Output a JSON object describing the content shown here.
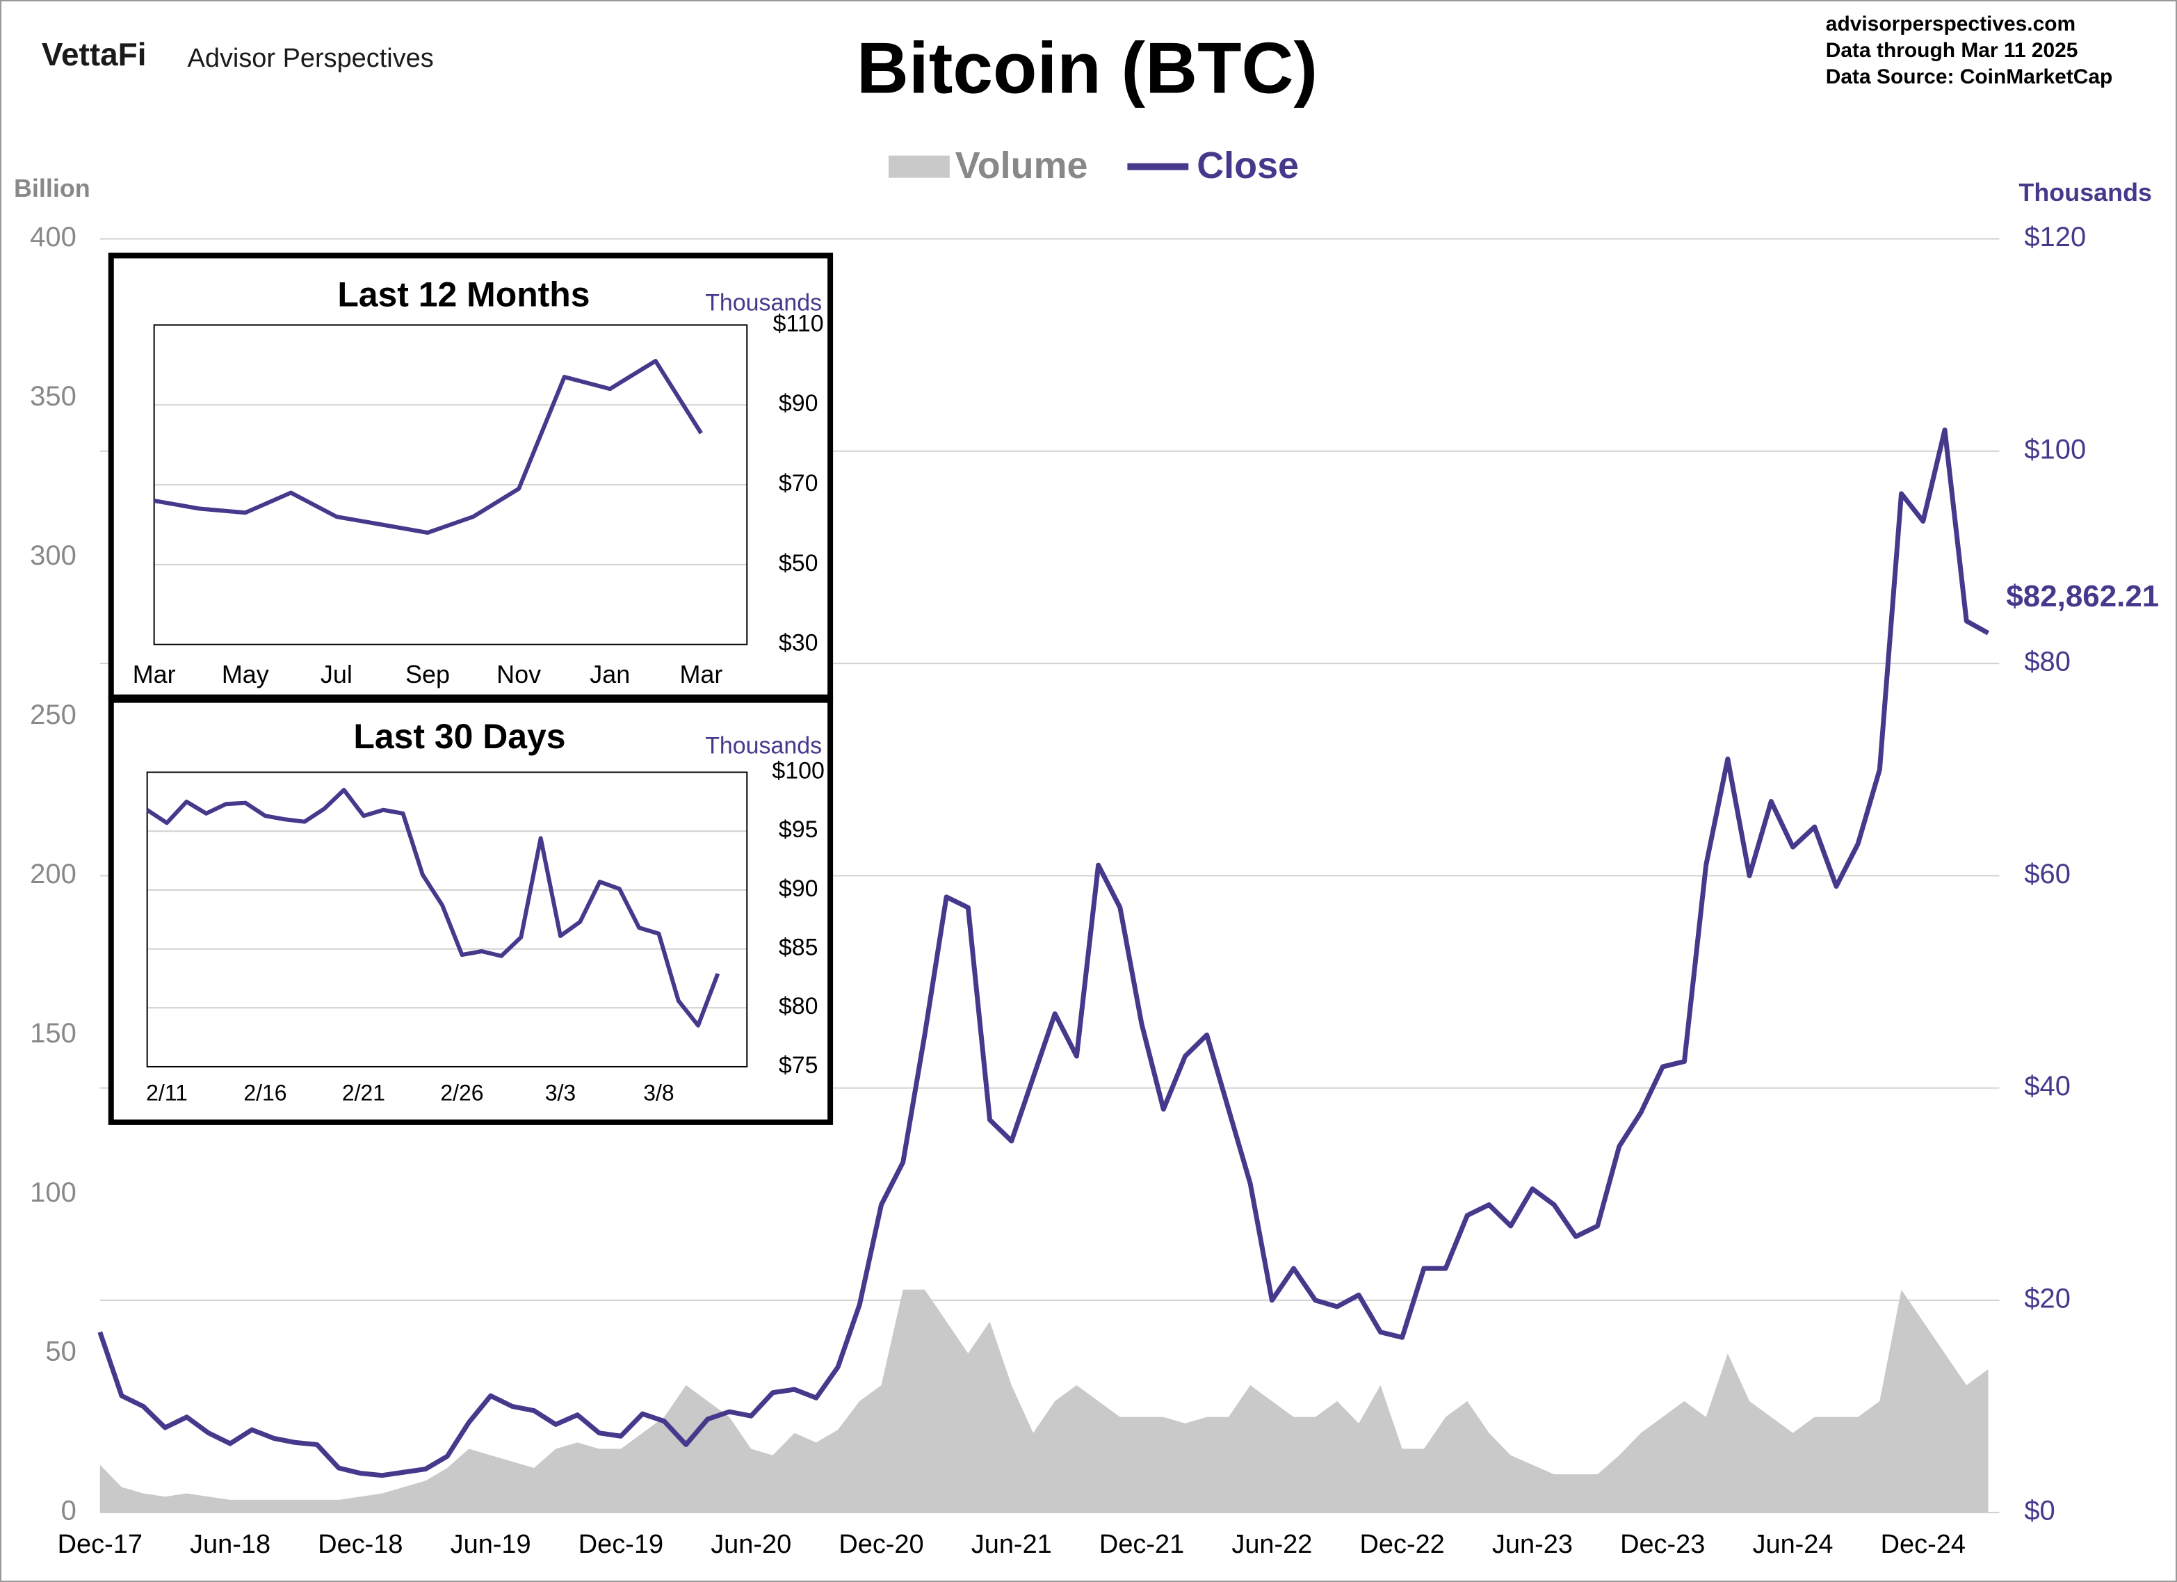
{
  "header": {
    "logo": "VettaFi",
    "brand": "Advisor Perspectives",
    "site": "advisorperspectives.com",
    "data_through": "Data through  Mar 11 2025",
    "data_source": "Data Source:  CoinMarketCap"
  },
  "chart_data": [
    {
      "type": "combo",
      "title": "Bitcoin (BTC)",
      "y_label": "Billion",
      "y2_label": "Thousands",
      "categories": [
        "Dec-17",
        null,
        null,
        null,
        null,
        null,
        "Jun-18",
        null,
        null,
        null,
        null,
        null,
        "Dec-18",
        null,
        null,
        null,
        null,
        null,
        "Jun-19",
        null,
        null,
        null,
        null,
        null,
        "Dec-19",
        null,
        null,
        null,
        null,
        null,
        "Jun-20",
        null,
        null,
        null,
        null,
        null,
        "Dec-20",
        null,
        null,
        null,
        null,
        null,
        "Jun-21",
        null,
        null,
        null,
        null,
        null,
        "Dec-21",
        null,
        null,
        null,
        null,
        null,
        "Jun-22",
        null,
        null,
        null,
        null,
        null,
        "Dec-22",
        null,
        null,
        null,
        null,
        null,
        "Jun-23",
        null,
        null,
        null,
        null,
        null,
        "Dec-23",
        null,
        null,
        null,
        null,
        null,
        "Jun-24",
        null,
        null,
        null,
        null,
        null,
        "Dec-24",
        null,
        null,
        null
      ],
      "series": [
        {
          "name": "Volume",
          "mark": "area",
          "axis": "y",
          "color": "#c9c9c9",
          "values": [
            15,
            8,
            6,
            5,
            6,
            5,
            4,
            4,
            4,
            4,
            4,
            4,
            5,
            6,
            8,
            10,
            14,
            20,
            18,
            16,
            14,
            20,
            22,
            20,
            20,
            25,
            30,
            40,
            35,
            30,
            20,
            18,
            25,
            22,
            26,
            35,
            40,
            70,
            70,
            60,
            50,
            60,
            40,
            25,
            35,
            40,
            35,
            30,
            30,
            30,
            28,
            30,
            30,
            40,
            35,
            30,
            30,
            35,
            28,
            40,
            20,
            20,
            30,
            35,
            25,
            18,
            15,
            12,
            12,
            12,
            18,
            25,
            30,
            35,
            30,
            50,
            35,
            30,
            25,
            30,
            30,
            30,
            35,
            70,
            60,
            50,
            40,
            45
          ]
        },
        {
          "name": "Close",
          "mark": "line",
          "axis": "y2",
          "color": "#46398c",
          "values": [
            17,
            11,
            10,
            8,
            9,
            7.5,
            6.5,
            7.8,
            7,
            6.6,
            6.4,
            4.2,
            3.7,
            3.5,
            3.8,
            4.1,
            5.3,
            8.5,
            11,
            10,
            9.6,
            8.3,
            9.2,
            7.5,
            7.2,
            9.3,
            8.6,
            6.4,
            8.8,
            9.5,
            9.1,
            11.3,
            11.6,
            10.8,
            13.7,
            19.6,
            29,
            33,
            45,
            58,
            57,
            37,
            35,
            41,
            47,
            43,
            61,
            57,
            46,
            38,
            43,
            45,
            38,
            31,
            20,
            23,
            20,
            19.4,
            20.5,
            17,
            16.5,
            23,
            23,
            28,
            29,
            27,
            30.5,
            29,
            26,
            27,
            34.5,
            37.7,
            42,
            42.5,
            61,
            71,
            60,
            67,
            62.7,
            64.6,
            59,
            63,
            70,
            96,
            93.4,
            102,
            84,
            82.86221
          ],
          "value_labels": [
            null,
            null,
            null,
            null,
            null,
            null,
            null,
            null,
            null,
            null,
            null,
            null,
            null,
            null,
            null,
            null,
            null,
            null,
            null,
            null,
            null,
            null,
            null,
            null,
            null,
            null,
            null,
            null,
            null,
            null,
            null,
            null,
            null,
            null,
            null,
            null,
            null,
            null,
            null,
            null,
            null,
            null,
            null,
            null,
            null,
            null,
            null,
            null,
            null,
            null,
            null,
            null,
            null,
            null,
            null,
            null,
            null,
            null,
            null,
            null,
            null,
            null,
            null,
            null,
            null,
            null,
            null,
            null,
            null,
            null,
            null,
            null,
            null,
            null,
            null,
            null,
            null,
            null,
            null,
            null,
            null,
            null,
            null,
            null,
            null,
            null,
            null,
            "$82,862.21"
          ]
        }
      ],
      "ylim": [
        0,
        400
      ],
      "yticks": [
        0,
        50,
        100,
        150,
        200,
        250,
        300,
        350,
        400
      ],
      "y2lim": [
        0,
        120
      ],
      "y2ticks": [
        {
          "value": 0,
          "label": "$0"
        },
        {
          "value": 20,
          "label": "$20"
        },
        {
          "value": 40,
          "label": "$40"
        },
        {
          "value": 60,
          "label": "$60"
        },
        {
          "value": 80,
          "label": "$80"
        },
        {
          "value": 100,
          "label": "$100"
        },
        {
          "value": 120,
          "label": "$120"
        }
      ],
      "grid": "y2",
      "legend": "top"
    },
    {
      "type": "line",
      "title": "Last 12 Months",
      "y2_label": "Thousands",
      "color": "#46398c",
      "categories": [
        "Mar",
        null,
        "May",
        null,
        "Jul",
        null,
        "Sep",
        null,
        "Nov",
        null,
        "Jan",
        null,
        "Mar"
      ],
      "values": [
        66,
        64,
        63,
        68,
        62,
        60,
        58,
        62,
        69,
        97,
        94,
        101,
        82.9
      ],
      "ylim": [
        30,
        110
      ],
      "yticks": [
        {
          "value": 30,
          "label": "$30"
        },
        {
          "value": 50,
          "label": "$50"
        },
        {
          "value": 70,
          "label": "$70"
        },
        {
          "value": 90,
          "label": "$90"
        },
        {
          "value": 110,
          "label": "$110"
        }
      ],
      "grid": true
    },
    {
      "type": "line",
      "title": "Last 30 Days",
      "y2_label": "Thousands",
      "color": "#46398c",
      "categories": [
        null,
        "2/11",
        null,
        null,
        null,
        null,
        "2/16",
        null,
        null,
        null,
        null,
        "2/21",
        null,
        null,
        null,
        null,
        "2/26",
        null,
        null,
        null,
        null,
        "3/3",
        null,
        null,
        null,
        null,
        "3/8",
        null,
        null,
        null
      ],
      "values": [
        96.8,
        95.7,
        97.5,
        96.5,
        97.3,
        97.4,
        96.3,
        96.0,
        95.8,
        96.9,
        98.5,
        96.3,
        96.8,
        96.5,
        91.3,
        88.7,
        84.5,
        84.8,
        84.4,
        86.0,
        94.4,
        86.1,
        87.3,
        90.7,
        90.1,
        86.8,
        86.3,
        80.6,
        78.5,
        82.9
      ],
      "ylim": [
        75,
        100
      ],
      "yticks": [
        {
          "value": 75,
          "label": "$75"
        },
        {
          "value": 80,
          "label": "$80"
        },
        {
          "value": 85,
          "label": "$85"
        },
        {
          "value": 90,
          "label": "$90"
        },
        {
          "value": 95,
          "label": "$95"
        },
        {
          "value": 100,
          "label": "$100"
        }
      ],
      "grid": true
    }
  ]
}
